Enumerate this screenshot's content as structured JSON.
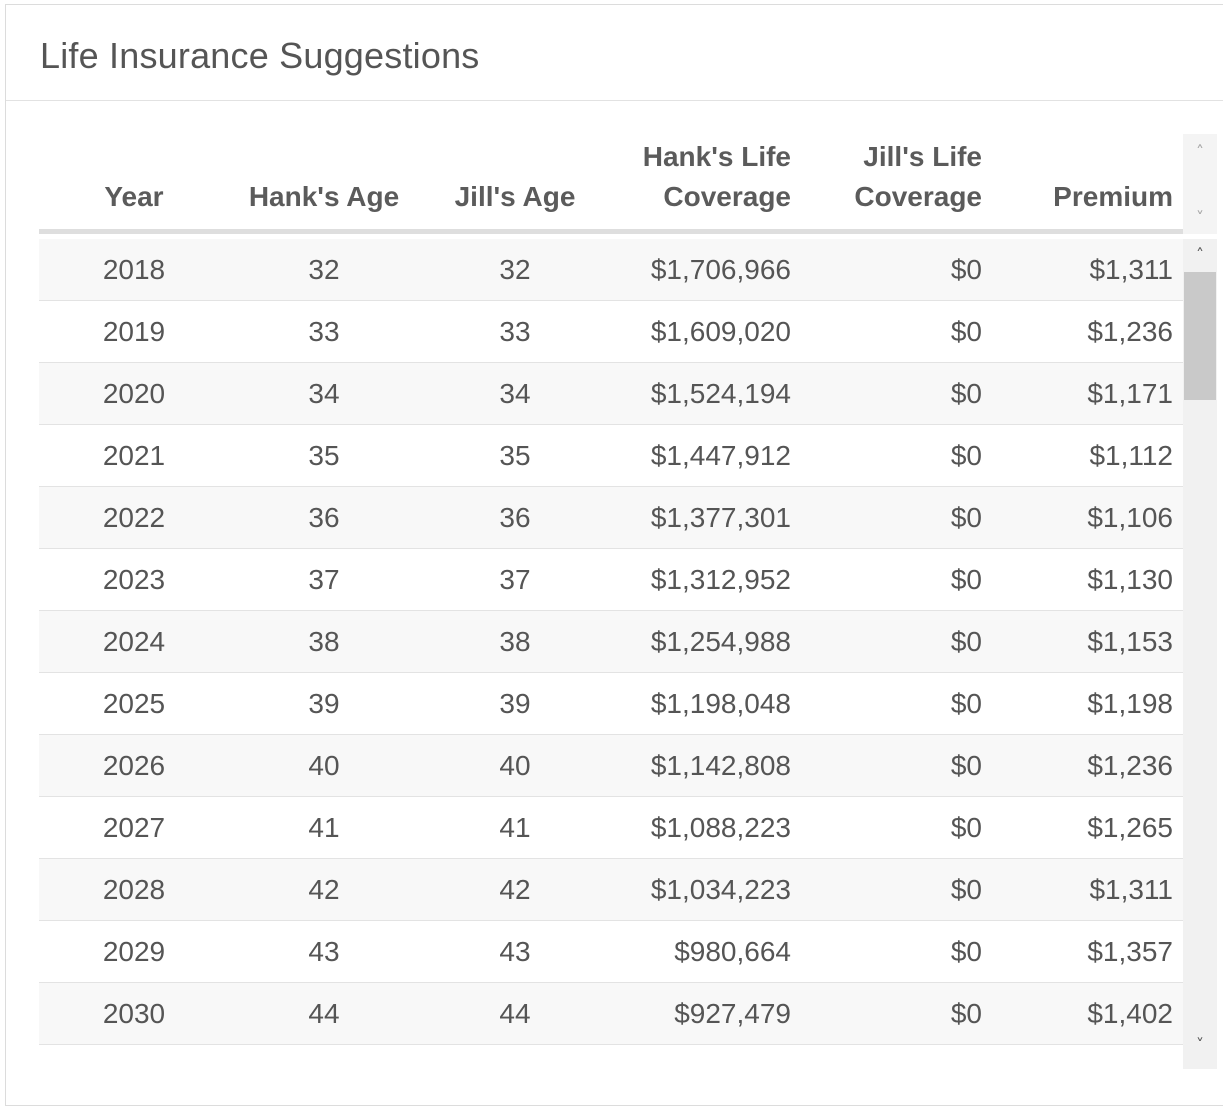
{
  "panel": {
    "title": "Life Insurance Suggestions"
  },
  "table": {
    "headers": {
      "year": "Year",
      "hank_age": "Hank's Age",
      "jill_age": "Jill's Age",
      "hank_coverage_line1": "Hank's Life",
      "hank_coverage_line2": "Coverage",
      "jill_coverage_line1": "Jill's Life",
      "jill_coverage_line2": "Coverage",
      "premium": "Premium"
    },
    "rows": [
      {
        "year": "2018",
        "hank_age": "32",
        "jill_age": "32",
        "hank_coverage": "$1,706,966",
        "jill_coverage": "$0",
        "premium": "$1,311"
      },
      {
        "year": "2019",
        "hank_age": "33",
        "jill_age": "33",
        "hank_coverage": "$1,609,020",
        "jill_coverage": "$0",
        "premium": "$1,236"
      },
      {
        "year": "2020",
        "hank_age": "34",
        "jill_age": "34",
        "hank_coverage": "$1,524,194",
        "jill_coverage": "$0",
        "premium": "$1,171"
      },
      {
        "year": "2021",
        "hank_age": "35",
        "jill_age": "35",
        "hank_coverage": "$1,447,912",
        "jill_coverage": "$0",
        "premium": "$1,112"
      },
      {
        "year": "2022",
        "hank_age": "36",
        "jill_age": "36",
        "hank_coverage": "$1,377,301",
        "jill_coverage": "$0",
        "premium": "$1,106"
      },
      {
        "year": "2023",
        "hank_age": "37",
        "jill_age": "37",
        "hank_coverage": "$1,312,952",
        "jill_coverage": "$0",
        "premium": "$1,130"
      },
      {
        "year": "2024",
        "hank_age": "38",
        "jill_age": "38",
        "hank_coverage": "$1,254,988",
        "jill_coverage": "$0",
        "premium": "$1,153"
      },
      {
        "year": "2025",
        "hank_age": "39",
        "jill_age": "39",
        "hank_coverage": "$1,198,048",
        "jill_coverage": "$0",
        "premium": "$1,198"
      },
      {
        "year": "2026",
        "hank_age": "40",
        "jill_age": "40",
        "hank_coverage": "$1,142,808",
        "jill_coverage": "$0",
        "premium": "$1,236"
      },
      {
        "year": "2027",
        "hank_age": "41",
        "jill_age": "41",
        "hank_coverage": "$1,088,223",
        "jill_coverage": "$0",
        "premium": "$1,265"
      },
      {
        "year": "2028",
        "hank_age": "42",
        "jill_age": "42",
        "hank_coverage": "$1,034,223",
        "jill_coverage": "$0",
        "premium": "$1,311"
      },
      {
        "year": "2029",
        "hank_age": "43",
        "jill_age": "43",
        "hank_coverage": "$980,664",
        "jill_coverage": "$0",
        "premium": "$1,357"
      },
      {
        "year": "2030",
        "hank_age": "44",
        "jill_age": "44",
        "hank_coverage": "$927,479",
        "jill_coverage": "$0",
        "premium": "$1,402"
      }
    ]
  },
  "icons": {
    "scroll_up": "chevron-up-icon",
    "scroll_down": "chevron-down-icon"
  },
  "colors": {
    "text": "#555555",
    "row_alt": "#f8f8f8",
    "scroll_thumb": "#c9c9c9"
  }
}
